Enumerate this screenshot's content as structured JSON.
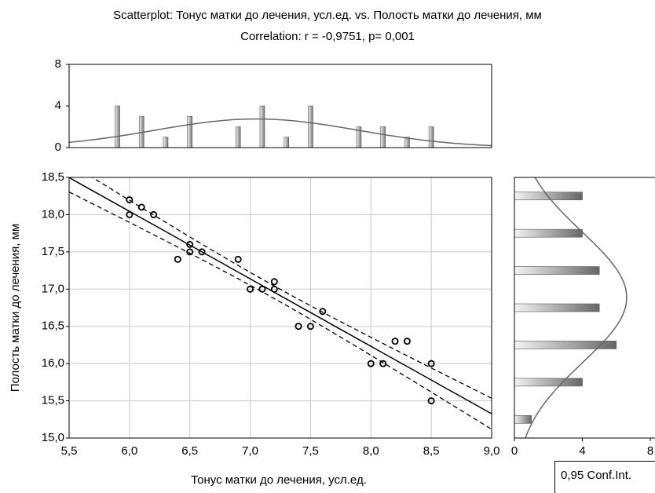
{
  "chart_data": [
    {
      "type": "scatter",
      "title": "Scatterplot: Тонус матки до лечения, усл.ед. vs. Полость матки до лечения, мм",
      "subtitle": "Correlation: r = -0,9751, p= 0,001",
      "x_label": "Тонус матки до лечения, усл.ед.",
      "y_label": "Полость матки до лечения, мм",
      "x": [
        6.0,
        6.0,
        6.1,
        6.2,
        6.4,
        6.5,
        6.5,
        6.6,
        6.9,
        7.0,
        7.1,
        7.2,
        7.2,
        7.4,
        7.5,
        7.6,
        8.0,
        8.1,
        8.2,
        8.3,
        8.5,
        8.5
      ],
      "y": [
        18.2,
        18.0,
        18.1,
        18.0,
        17.4,
        17.6,
        17.5,
        17.5,
        17.4,
        17.0,
        17.0,
        17.1,
        17.0,
        16.5,
        16.5,
        16.7,
        16.0,
        16.0,
        16.3,
        16.3,
        16.0,
        15.5
      ],
      "color": "#000000",
      "xlim": [
        5.5,
        9.0
      ],
      "ylim": [
        15.0,
        18.5
      ],
      "xticks": [
        {
          "value": 5.5,
          "label": "5,5"
        },
        {
          "value": 6.0,
          "label": "6,0"
        },
        {
          "value": 6.5,
          "label": "6,5"
        },
        {
          "value": 7.0,
          "label": "7,0"
        },
        {
          "value": 7.5,
          "label": "7,5"
        },
        {
          "value": 8.0,
          "label": "8,0"
        },
        {
          "value": 8.5,
          "label": "8,5"
        },
        {
          "value": 9.0,
          "label": "9,0"
        }
      ],
      "yticks": [
        {
          "value": 15.0,
          "label": "15,0"
        },
        {
          "value": 15.5,
          "label": "15,5"
        },
        {
          "value": 16.0,
          "label": "16,0"
        },
        {
          "value": 16.5,
          "label": "16,5"
        },
        {
          "value": 17.0,
          "label": "17,0"
        },
        {
          "value": 17.5,
          "label": "17,5"
        },
        {
          "value": 18.0,
          "label": "18,0"
        },
        {
          "value": 18.5,
          "label": "18,5"
        }
      ],
      "grid": true,
      "legend_label": "0,95 Conf.Int."
    },
    {
      "type": "bar",
      "x": [
        5.9,
        6.1,
        6.3,
        6.5,
        6.9,
        7.1,
        7.3,
        7.5,
        7.9,
        8.1,
        8.3,
        8.5
      ],
      "values": [
        4,
        3,
        1,
        3,
        2,
        4,
        1,
        4,
        2,
        2,
        1,
        2
      ],
      "xlim": [
        5.5,
        9.0
      ],
      "ylim": [
        0,
        8
      ],
      "yticks": [
        0,
        4,
        8
      ]
    },
    {
      "type": "barh",
      "y": [
        18.25,
        17.75,
        17.25,
        16.75,
        16.25,
        15.75,
        15.25
      ],
      "values": [
        4,
        4,
        5,
        5,
        6,
        4,
        1
      ],
      "ylim": [
        15.0,
        18.5
      ],
      "xlim": [
        0,
        8
      ],
      "xticks": [
        0,
        4,
        8
      ]
    }
  ]
}
